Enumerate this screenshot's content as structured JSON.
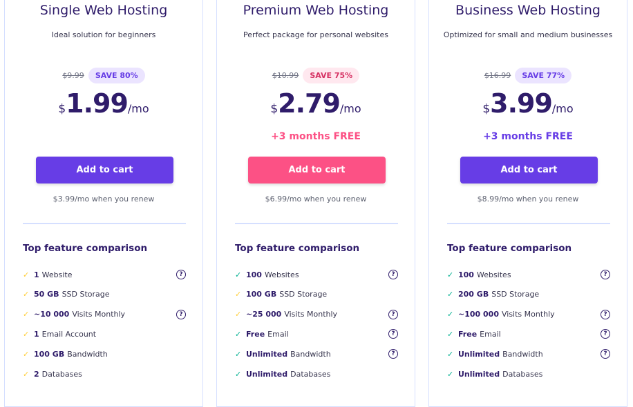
{
  "colors": {
    "purple": "#673de6",
    "pink": "#fc5185",
    "check_yellow": "#ffcd35",
    "check_green": "#00b090"
  },
  "feature_heading": "Top feature comparison",
  "plans": [
    {
      "title": "Single Web Hosting",
      "subtitle": "Ideal solution for beginners",
      "old_price": "$9.99",
      "save": "SAVE 80%",
      "currency": "$",
      "price": "1.99",
      "per": "/mo",
      "bonus": "",
      "button": "Add to cart",
      "renew": "$3.99/mo when you renew",
      "accent": "#673de6",
      "features": [
        {
          "bold": "1",
          "text": "Website",
          "check": "yellow",
          "help": true
        },
        {
          "bold": "50 GB",
          "text": "SSD Storage",
          "check": "yellow",
          "help": false
        },
        {
          "bold": "~10 000",
          "text": "Visits Monthly",
          "check": "yellow",
          "help": true
        },
        {
          "bold": "1",
          "text": "Email Account",
          "check": "yellow",
          "help": false
        },
        {
          "bold": "100 GB",
          "text": "Bandwidth",
          "check": "yellow",
          "help": false
        },
        {
          "bold": "2",
          "text": "Databases",
          "check": "yellow",
          "help": false
        }
      ]
    },
    {
      "title": "Premium Web Hosting",
      "subtitle": "Perfect package for personal websites",
      "old_price": "$10.99",
      "save": "SAVE 75%",
      "currency": "$",
      "price": "2.79",
      "per": "/mo",
      "bonus": "+3 months FREE",
      "button": "Add to cart",
      "renew": "$6.99/mo when you renew",
      "accent": "#fc5185",
      "features": [
        {
          "bold": "100",
          "text": "Websites",
          "check": "green",
          "help": true
        },
        {
          "bold": "100 GB",
          "text": "SSD Storage",
          "check": "yellow",
          "help": false
        },
        {
          "bold": "~25 000",
          "text": "Visits Monthly",
          "check": "yellow",
          "help": true
        },
        {
          "bold": "Free",
          "text": "Email",
          "check": "green",
          "help": true
        },
        {
          "bold": "Unlimited",
          "text": "Bandwidth",
          "check": "green",
          "help": true
        },
        {
          "bold": "Unlimited",
          "text": "Databases",
          "check": "green",
          "help": false
        }
      ]
    },
    {
      "title": "Business Web Hosting",
      "subtitle": "Optimized for small and medium businesses",
      "old_price": "$16.99",
      "save": "SAVE 77%",
      "currency": "$",
      "price": "3.99",
      "per": "/mo",
      "bonus": "+3 months FREE",
      "button": "Add to cart",
      "renew": "$8.99/mo when you renew",
      "accent": "#673de6",
      "features": [
        {
          "bold": "100",
          "text": "Websites",
          "check": "green",
          "help": true
        },
        {
          "bold": "200 GB",
          "text": "SSD Storage",
          "check": "green",
          "help": false
        },
        {
          "bold": "~100 000",
          "text": "Visits Monthly",
          "check": "green",
          "help": true
        },
        {
          "bold": "Free",
          "text": "Email",
          "check": "green",
          "help": true
        },
        {
          "bold": "Unlimited",
          "text": "Bandwidth",
          "check": "green",
          "help": true
        },
        {
          "bold": "Unlimited",
          "text": "Databases",
          "check": "green",
          "help": false
        }
      ]
    }
  ]
}
